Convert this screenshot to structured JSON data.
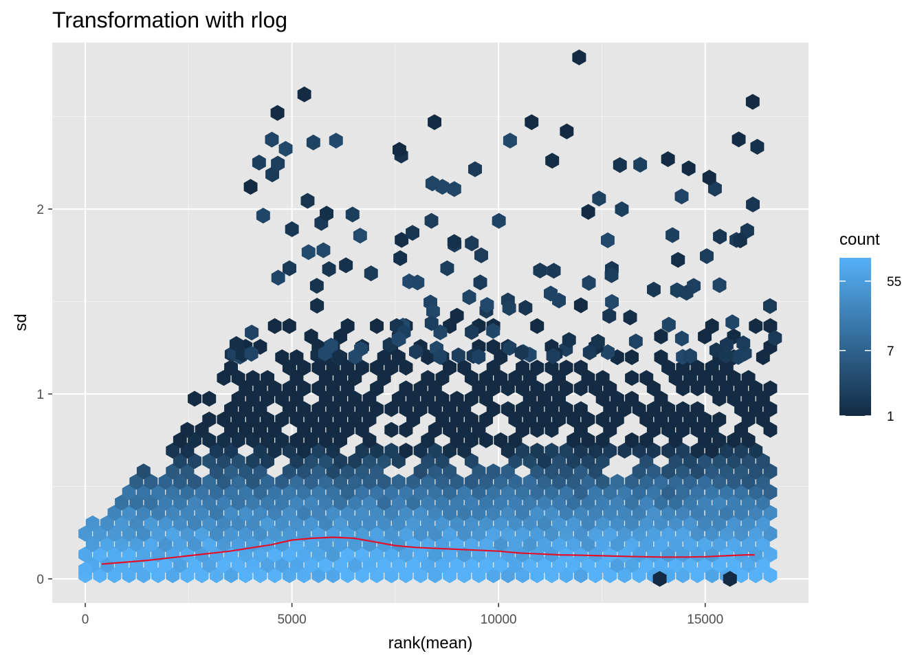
{
  "chart_data": {
    "type": "hexbin",
    "title": "Transformation with rlog",
    "xlabel": "rank(mean)",
    "ylabel": "sd",
    "xlim": [
      -800,
      17500
    ],
    "ylim": [
      -0.13,
      2.9
    ],
    "x_ticks": [
      0,
      5000,
      10000,
      15000
    ],
    "y_ticks": [
      0,
      1,
      2
    ],
    "grid": true,
    "panel_background": "#e6e6e6",
    "legend": {
      "title": "count",
      "placement": "right",
      "scale": "log",
      "breaks": [
        1,
        7,
        55
      ],
      "range": [
        1,
        110
      ],
      "color_low": "#132b43",
      "color_high": "#56b1f7"
    },
    "trend_line": {
      "color": "#e3102a",
      "x": [
        400,
        1500,
        2500,
        3500,
        4500,
        5000,
        5500,
        6000,
        6500,
        7000,
        7500,
        8000,
        8500,
        9000,
        9500,
        10000,
        10500,
        11000,
        11500,
        12000,
        12500,
        13000,
        13500,
        14000,
        14500,
        15000,
        15500,
        16000,
        16200
      ],
      "y": [
        0.08,
        0.1,
        0.125,
        0.15,
        0.185,
        0.21,
        0.22,
        0.225,
        0.22,
        0.2,
        0.18,
        0.17,
        0.165,
        0.16,
        0.155,
        0.15,
        0.14,
        0.135,
        0.13,
        0.128,
        0.125,
        0.122,
        0.12,
        0.118,
        0.118,
        0.12,
        0.125,
        0.13,
        0.13
      ]
    },
    "hexbins_sample": [
      {
        "x": 0,
        "y": 0.05,
        "count": 100
      },
      {
        "x": 5300,
        "y": 2.62,
        "count": 1
      },
      {
        "x": 11950,
        "y": 2.82,
        "count": 1
      },
      {
        "x": 16150,
        "y": 2.58,
        "count": 1
      },
      {
        "x": 4650,
        "y": 2.52,
        "count": 1
      },
      {
        "x": 8450,
        "y": 2.47,
        "count": 1
      },
      {
        "x": 10800,
        "y": 2.47,
        "count": 1
      },
      {
        "x": 11650,
        "y": 2.42,
        "count": 1
      },
      {
        "x": 7600,
        "y": 2.32,
        "count": 1
      },
      {
        "x": 14100,
        "y": 2.27,
        "count": 1
      },
      {
        "x": 14600,
        "y": 2.22,
        "count": 1
      },
      {
        "x": 15100,
        "y": 2.17,
        "count": 1
      },
      {
        "x": 4000,
        "y": 2.12,
        "count": 1
      },
      {
        "x": 13900,
        "y": 0,
        "count": 1
      },
      {
        "x": 15600,
        "y": 0,
        "count": 1
      }
    ]
  }
}
